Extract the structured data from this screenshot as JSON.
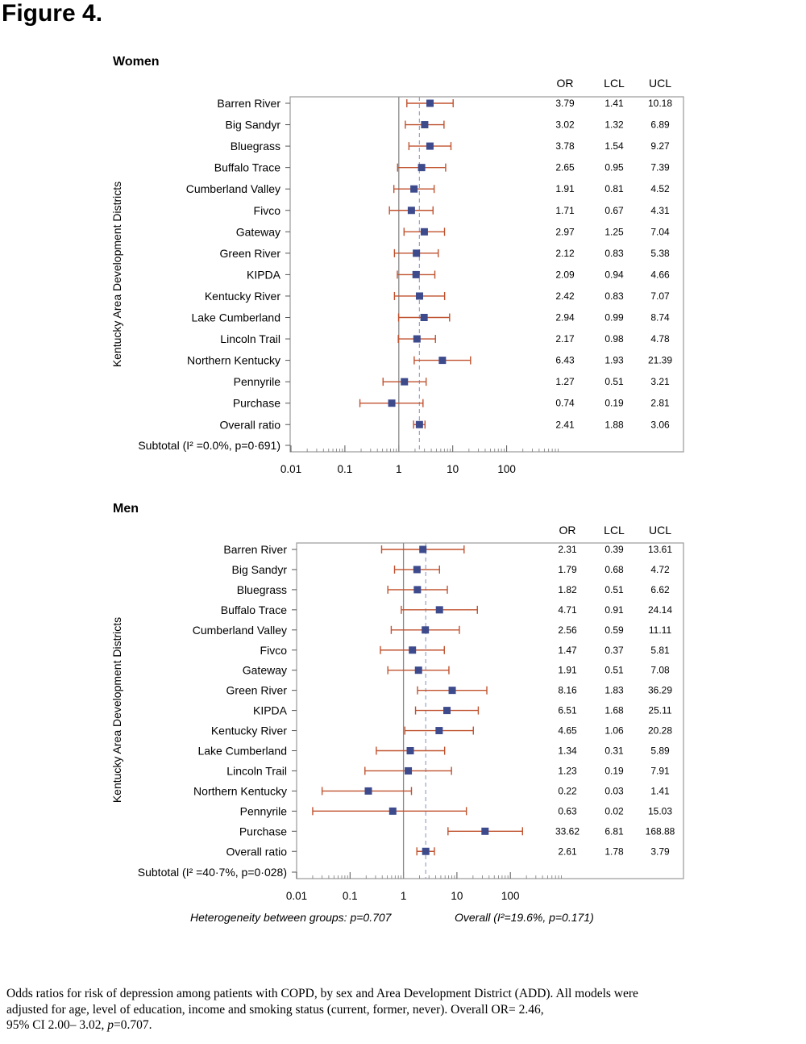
{
  "figure_title": "Figure 4.",
  "caption": {
    "line1": "Odds ratios for risk of depression among patients with COPD, by sex and Area Development District (ADD). All models were",
    "line2": "adjusted for age, level of education,  income and smoking status (current, former, never). Overall OR= 2.46,",
    "line3_prefix": "95% CI 2.00– 3.02, ",
    "line3_p": "p",
    "line3_suffix": "=0.707."
  },
  "colors": {
    "marker": "#3d4a8c",
    "whisker": "#c0522f",
    "frame": "#9a9a9a",
    "reference_line": "#888888",
    "overall_line": "#9aa0c8"
  },
  "chart_data": [
    {
      "type": "forest",
      "title": "Women",
      "ylabel": "Kentucky Area Development Districts",
      "x_scale": "log",
      "x_ticks": [
        "0.01",
        "0.1",
        "1",
        "10",
        "100"
      ],
      "xlim": [
        0.01,
        2000
      ],
      "reference_line": 1,
      "overall_line": 2.41,
      "column_headers": [
        "OR",
        "LCL",
        "UCL"
      ],
      "rows": [
        {
          "label": "Barren River",
          "or": "3.79",
          "lcl": "1.41",
          "ucl": "10.18"
        },
        {
          "label": "Big Sandyr",
          "or": "3.02",
          "lcl": "1.32",
          "ucl": "6.89"
        },
        {
          "label": "Bluegrass",
          "or": "3.78",
          "lcl": "1.54",
          "ucl": "9.27"
        },
        {
          "label": "Buffalo Trace",
          "or": "2.65",
          "lcl": "0.95",
          "ucl": "7.39"
        },
        {
          "label": "Cumberland Valley",
          "or": "1.91",
          "lcl": "0.81",
          "ucl": "4.52"
        },
        {
          "label": "Fivco",
          "or": "1.71",
          "lcl": "0.67",
          "ucl": "4.31"
        },
        {
          "label": "Gateway",
          "or": "2.97",
          "lcl": "1.25",
          "ucl": "7.04"
        },
        {
          "label": "Green River",
          "or": "2.12",
          "lcl": "0.83",
          "ucl": "5.38"
        },
        {
          "label": "KIPDA",
          "or": "2.09",
          "lcl": "0.94",
          "ucl": "4.66"
        },
        {
          "label": "Kentucky River",
          "or": "2.42",
          "lcl": "0.83",
          "ucl": "7.07"
        },
        {
          "label": "Lake Cumberland",
          "or": "2.94",
          "lcl": "0.99",
          "ucl": "8.74"
        },
        {
          "label": "Lincoln Trail",
          "or": "2.17",
          "lcl": "0.98",
          "ucl": "4.78"
        },
        {
          "label": "Northern Kentucky",
          "or": "6.43",
          "lcl": "1.93",
          "ucl": "21.39"
        },
        {
          "label": "Pennyrile",
          "or": "1.27",
          "lcl": "0.51",
          "ucl": "3.21"
        },
        {
          "label": "Purchase",
          "or": "0.74",
          "lcl": "0.19",
          "ucl": "2.81"
        },
        {
          "label": "Overall ratio",
          "or": "2.41",
          "lcl": "1.88",
          "ucl": "3.06"
        }
      ],
      "subtotal_label": "Subtotal (I² =0.0%, p=0·691)"
    },
    {
      "type": "forest",
      "title": "Men",
      "ylabel": "Kentucky Area Development Districts",
      "x_scale": "log",
      "x_ticks": [
        "0.01",
        "0.1",
        "1",
        "10",
        "100"
      ],
      "xlim": [
        0.01,
        2000
      ],
      "reference_line": 1,
      "overall_line": 2.61,
      "column_headers": [
        "OR",
        "LCL",
        "UCL"
      ],
      "rows": [
        {
          "label": "Barren River",
          "or": "2.31",
          "lcl": "0.39",
          "ucl": "13.61"
        },
        {
          "label": "Big Sandyr",
          "or": "1.79",
          "lcl": "0.68",
          "ucl": "4.72"
        },
        {
          "label": "Bluegrass",
          "or": "1.82",
          "lcl": "0.51",
          "ucl": "6.62"
        },
        {
          "label": "Buffalo Trace",
          "or": "4.71",
          "lcl": "0.91",
          "ucl": "24.14"
        },
        {
          "label": "Cumberland Valley",
          "or": "2.56",
          "lcl": "0.59",
          "ucl": "11.11"
        },
        {
          "label": "Fivco",
          "or": "1.47",
          "lcl": "0.37",
          "ucl": "5.81"
        },
        {
          "label": "Gateway",
          "or": "1.91",
          "lcl": "0.51",
          "ucl": "7.08"
        },
        {
          "label": "Green River",
          "or": "8.16",
          "lcl": "1.83",
          "ucl": "36.29"
        },
        {
          "label": "KIPDA",
          "or": "6.51",
          "lcl": "1.68",
          "ucl": "25.11"
        },
        {
          "label": "Kentucky River",
          "or": "4.65",
          "lcl": "1.06",
          "ucl": "20.28"
        },
        {
          "label": "Lake Cumberland",
          "or": "1.34",
          "lcl": "0.31",
          "ucl": "5.89"
        },
        {
          "label": "Lincoln Trail",
          "or": "1.23",
          "lcl": "0.19",
          "ucl": "7.91"
        },
        {
          "label": "Northern Kentucky",
          "or": "0.22",
          "lcl": "0.03",
          "ucl": "1.41"
        },
        {
          "label": "Pennyrile",
          "or": "0.63",
          "lcl": "0.02",
          "ucl": "15.03"
        },
        {
          "label": "Purchase",
          "or": "33.62",
          "lcl": "6.81",
          "ucl": "168.88"
        },
        {
          "label": "Overall ratio",
          "or": "2.61",
          "lcl": "1.78",
          "ucl": "3.79"
        }
      ],
      "subtotal_label": "Subtotal (I² =40·7%, p=0·028)",
      "footer_left": "Heterogeneity between groups: p=0.707",
      "footer_right": "Overall (I²=19.6%, p=0.171)"
    }
  ]
}
